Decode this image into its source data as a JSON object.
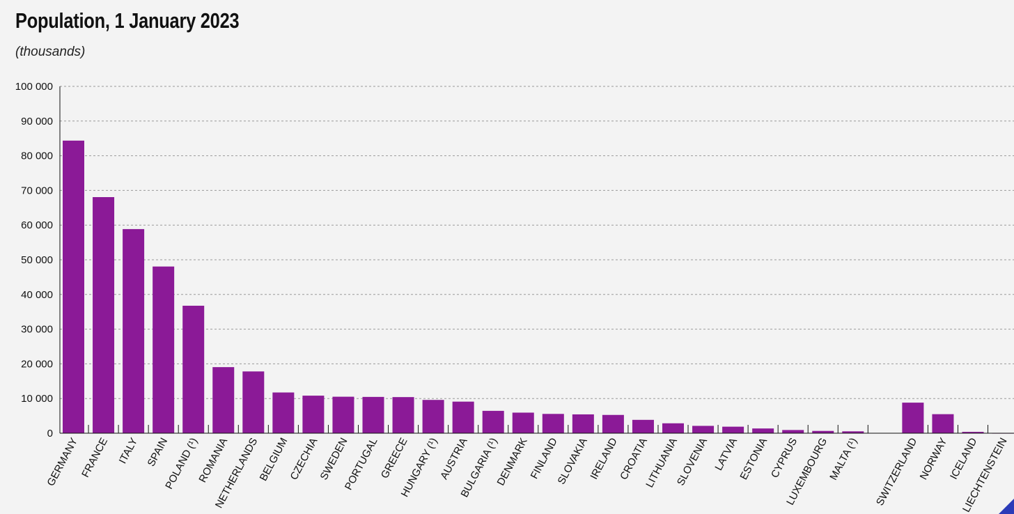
{
  "chart_data": {
    "type": "bar",
    "title": "Population, 1 January 2023",
    "subtitle": "(thousands)",
    "ylim": [
      0,
      100000
    ],
    "yticks": [
      0,
      10000,
      20000,
      30000,
      40000,
      50000,
      60000,
      70000,
      80000,
      90000,
      100000
    ],
    "ytick_labels": [
      "0",
      "10 000",
      "20 000",
      "30 000",
      "40 000",
      "50 000",
      "60 000",
      "70 000",
      "80 000",
      "90 000",
      "100 000"
    ],
    "grid": true,
    "color": "#8b1a97",
    "groups": [
      {
        "categories": [
          "GERMANY",
          "FRANCE",
          "ITALY",
          "SPAIN",
          "POLAND (¹)",
          "ROMANIA",
          "NETHERLANDS",
          "BELGIUM",
          "CZECHIA",
          "SWEDEN",
          "PORTUGAL",
          "GREECE",
          "HUNGARY (¹)",
          "AUSTRIA",
          "BULGARIA (¹)",
          "DENMARK",
          "FINLAND",
          "SLOVAKIA",
          "IRELAND",
          "CROATIA",
          "LITHUANIA",
          "SLOVENIA",
          "LATVIA",
          "ESTONIA",
          "CYPRUS",
          "LUXEMBOURG",
          "MALTA (¹)"
        ],
        "values": [
          84359,
          68070,
          58851,
          48060,
          36754,
          19052,
          17811,
          11743,
          10828,
          10522,
          10467,
          10414,
          9600,
          9105,
          6448,
          5933,
          5564,
          5429,
          5271,
          3851,
          2858,
          2117,
          1883,
          1366,
          921,
          661,
          542
        ]
      },
      {
        "categories": [
          "SWITZERLAND",
          "NORWAY",
          "ICELAND",
          "LIECHTENSTEIN"
        ],
        "values": [
          8813,
          5489,
          388,
          40
        ]
      }
    ]
  }
}
